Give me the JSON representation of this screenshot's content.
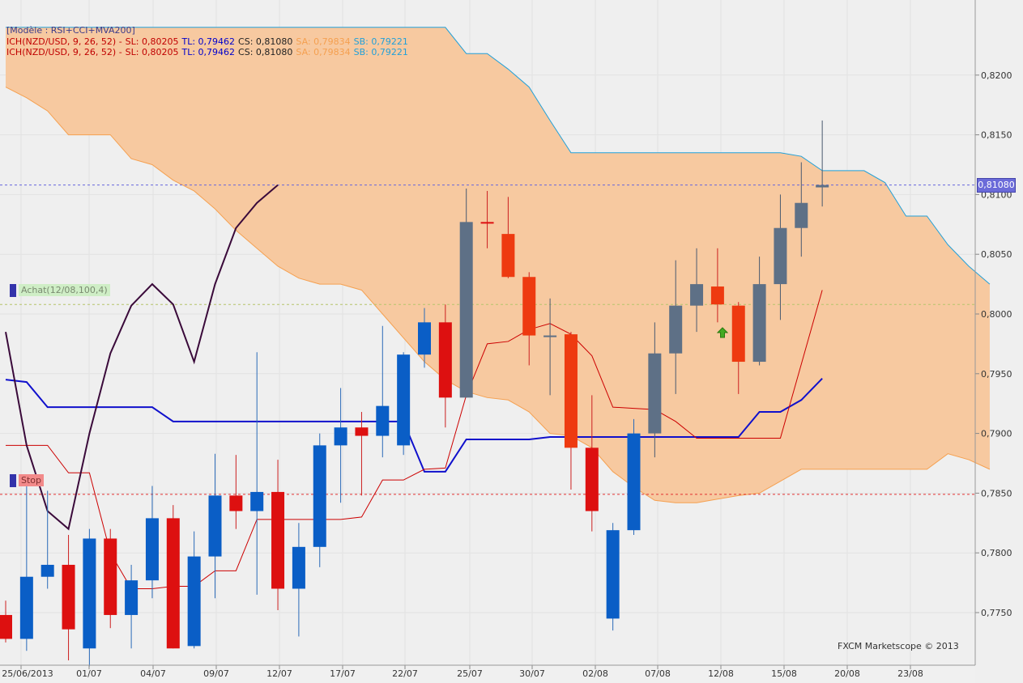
{
  "legend": {
    "model": "[Modèle : RSI+CCI+MVA200]",
    "ich_label": "ICH(NZD/USD, 9, 26, 52) -",
    "sl": "SL: 0,80205",
    "tl": "TL: 0,79462",
    "cs": "CS: 0,81080",
    "sa": "SA: 0,79834",
    "sb": "SB: 0,79221"
  },
  "orders": {
    "buy_label": "Achat(12/08,100,4)",
    "buy_level": 0.8008,
    "stop_label": "Stop",
    "stop_level": 0.7849
  },
  "current_price": {
    "label": "0,81080",
    "value": 0.8108
  },
  "watermark": "FXCM Marketscope © 2013",
  "colors": {
    "bull_blue": "#0a5ec6",
    "bear_red": "#dd1010",
    "bear_orange": "#ee3a10",
    "gray_candle": "#5e7086",
    "cloud_fill": "#f7c9a0",
    "cloud_edge_a": "#f5a050",
    "cloud_edge_b": "#22a0d8",
    "kijun": "#1010cc",
    "tenkan": "#cc0000",
    "chikou": "#3a0a3a"
  },
  "chart_data": {
    "type": "candlestick",
    "instrument": "NZD/USD",
    "ylim": [
      0.772,
      0.824
    ],
    "y_ticks": [
      "0,7750",
      "0,7800",
      "0,7850",
      "0,7900",
      "0,7950",
      "0,8000",
      "0,8050",
      "0,8100",
      "0,8150",
      "0,8200"
    ],
    "y_tick_values": [
      0.775,
      0.78,
      0.785,
      0.79,
      0.795,
      0.8,
      0.805,
      0.81,
      0.815,
      0.82
    ],
    "x_ticks": [
      "25/06/2013",
      "01/07",
      "04/07",
      "09/07",
      "12/07",
      "17/07",
      "22/07",
      "25/07",
      "30/07",
      "02/08",
      "07/08",
      "12/08",
      "15/08",
      "20/08",
      "23/08"
    ],
    "candles": [
      {
        "o": 0.7748,
        "h": 0.776,
        "l": 0.7725,
        "c": 0.7728
      },
      {
        "o": 0.7728,
        "h": 0.786,
        "l": 0.7718,
        "c": 0.778
      },
      {
        "o": 0.778,
        "h": 0.7852,
        "l": 0.777,
        "c": 0.779
      },
      {
        "o": 0.779,
        "h": 0.7815,
        "l": 0.771,
        "c": 0.7736
      },
      {
        "o": 0.772,
        "h": 0.782,
        "l": 0.7705,
        "c": 0.7812
      },
      {
        "o": 0.7812,
        "h": 0.782,
        "l": 0.7737,
        "c": 0.7748
      },
      {
        "o": 0.7748,
        "h": 0.779,
        "l": 0.772,
        "c": 0.7777
      },
      {
        "o": 0.7777,
        "h": 0.7856,
        "l": 0.7762,
        "c": 0.7829
      },
      {
        "o": 0.7829,
        "h": 0.784,
        "l": 0.772,
        "c": 0.772
      },
      {
        "o": 0.7722,
        "h": 0.7818,
        "l": 0.772,
        "c": 0.7797
      },
      {
        "o": 0.7797,
        "h": 0.7883,
        "l": 0.7762,
        "c": 0.7848
      },
      {
        "o": 0.7848,
        "h": 0.7882,
        "l": 0.782,
        "c": 0.7835
      },
      {
        "o": 0.7835,
        "h": 0.7968,
        "l": 0.7765,
        "c": 0.7851
      },
      {
        "o": 0.7851,
        "h": 0.7878,
        "l": 0.7752,
        "c": 0.777
      },
      {
        "o": 0.777,
        "h": 0.7825,
        "l": 0.773,
        "c": 0.7805
      },
      {
        "o": 0.7805,
        "h": 0.79,
        "l": 0.7788,
        "c": 0.789
      },
      {
        "o": 0.789,
        "h": 0.7938,
        "l": 0.7842,
        "c": 0.7905
      },
      {
        "o": 0.7905,
        "h": 0.7918,
        "l": 0.7848,
        "c": 0.7898
      },
      {
        "o": 0.7898,
        "h": 0.799,
        "l": 0.788,
        "c": 0.7923
      },
      {
        "o": 0.789,
        "h": 0.7968,
        "l": 0.7882,
        "c": 0.7966
      },
      {
        "o": 0.7966,
        "h": 0.8005,
        "l": 0.7955,
        "c": 0.7993
      },
      {
        "o": 0.7993,
        "h": 0.8008,
        "l": 0.7905,
        "c": 0.793
      },
      {
        "o": 0.793,
        "h": 0.8105,
        "l": 0.793,
        "c": 0.8077
      },
      {
        "o": 0.8077,
        "h": 0.8103,
        "l": 0.8055,
        "c": 0.8077
      },
      {
        "o": 0.8067,
        "h": 0.8098,
        "l": 0.803,
        "c": 0.8031
      },
      {
        "o": 0.8031,
        "h": 0.8035,
        "l": 0.7957,
        "c": 0.7982
      },
      {
        "o": 0.7982,
        "h": 0.8013,
        "l": 0.7932,
        "c": 0.7982
      },
      {
        "o": 0.7983,
        "h": 0.7985,
        "l": 0.7853,
        "c": 0.7888
      },
      {
        "o": 0.7888,
        "h": 0.7932,
        "l": 0.7818,
        "c": 0.7835
      },
      {
        "o": 0.7745,
        "h": 0.7825,
        "l": 0.7735,
        "c": 0.7819
      },
      {
        "o": 0.7819,
        "h": 0.7912,
        "l": 0.7815,
        "c": 0.79
      },
      {
        "o": 0.79,
        "h": 0.7993,
        "l": 0.788,
        "c": 0.7967
      },
      {
        "o": 0.7967,
        "h": 0.8045,
        "l": 0.7933,
        "c": 0.8007
      },
      {
        "o": 0.8007,
        "h": 0.8055,
        "l": 0.7985,
        "c": 0.8025
      },
      {
        "o": 0.8023,
        "h": 0.8055,
        "l": 0.7993,
        "c": 0.8008
      },
      {
        "o": 0.8007,
        "h": 0.801,
        "l": 0.7933,
        "c": 0.796
      },
      {
        "o": 0.796,
        "h": 0.8048,
        "l": 0.7957,
        "c": 0.8025
      },
      {
        "o": 0.8025,
        "h": 0.81,
        "l": 0.7995,
        "c": 0.8072
      },
      {
        "o": 0.8072,
        "h": 0.8127,
        "l": 0.8048,
        "c": 0.8093
      },
      {
        "o": 0.8108,
        "h": 0.8162,
        "l": 0.809,
        "c": 0.8106
      }
    ],
    "candle_colors": [
      "red",
      "blue",
      "blue",
      "red",
      "blue",
      "red",
      "blue",
      "blue",
      "red",
      "blue",
      "blue",
      "red",
      "blue",
      "red",
      "blue",
      "blue",
      "blue",
      "red",
      "blue",
      "blue",
      "blue",
      "red",
      "gray",
      "red",
      "orange",
      "orange",
      "gray",
      "orange",
      "red",
      "blue",
      "blue",
      "gray",
      "gray",
      "gray",
      "orange",
      "orange",
      "gray",
      "gray",
      "gray",
      "gray"
    ],
    "tenkan": [
      0.789,
      0.789,
      0.789,
      0.7867,
      0.7867,
      0.78,
      0.777,
      0.777,
      0.7772,
      0.7772,
      0.7785,
      0.7785,
      0.7828,
      0.7828,
      0.7828,
      0.7828,
      0.7828,
      0.783,
      0.7861,
      0.7861,
      0.787,
      0.7871,
      0.7932,
      0.7975,
      0.7977,
      0.7987,
      0.7992,
      0.7983,
      0.7965,
      0.7922,
      0.7921,
      0.792,
      0.791,
      0.7896,
      0.7896,
      0.7896,
      0.7896,
      0.7896,
      0.7958,
      0.802
    ],
    "kijun": [
      0.7945,
      0.7943,
      0.7922,
      0.7922,
      0.7922,
      0.7922,
      0.7922,
      0.7922,
      0.791,
      0.791,
      0.791,
      0.791,
      0.791,
      0.791,
      0.791,
      0.791,
      0.791,
      0.791,
      0.791,
      0.791,
      0.7868,
      0.7868,
      0.7895,
      0.7895,
      0.7895,
      0.7895,
      0.7897,
      0.7897,
      0.7897,
      0.7897,
      0.7897,
      0.7897,
      0.7897,
      0.7897,
      0.7897,
      0.7897,
      0.7918,
      0.7918,
      0.7928,
      0.7946
    ],
    "chikou": [
      0.7985,
      0.789,
      0.7835,
      0.782,
      0.79,
      0.7967,
      0.8007,
      0.8025,
      0.8008,
      0.796,
      0.8025,
      0.8072,
      0.8093,
      0.8108
    ],
    "senkou_a": [
      0.819,
      0.8181,
      0.817,
      0.815,
      0.815,
      0.815,
      0.813,
      0.8125,
      0.8112,
      0.8103,
      0.8088,
      0.807,
      0.8055,
      0.804,
      0.803,
      0.8025,
      0.8025,
      0.802,
      0.8,
      0.798,
      0.796,
      0.7945,
      0.7935,
      0.793,
      0.7928,
      0.7918,
      0.79,
      0.7898,
      0.7888,
      0.7868,
      0.7855,
      0.7844,
      0.7842,
      0.7842,
      0.7845,
      0.7848,
      0.785,
      0.786,
      0.787,
      0.787,
      0.787,
      0.787,
      0.787,
      0.787,
      0.787,
      0.7883,
      0.7878,
      0.787
    ],
    "senkou_b": [
      0.824,
      0.824,
      0.824,
      0.824,
      0.824,
      0.824,
      0.824,
      0.824,
      0.824,
      0.824,
      0.824,
      0.824,
      0.824,
      0.824,
      0.824,
      0.824,
      0.824,
      0.824,
      0.824,
      0.824,
      0.824,
      0.824,
      0.8218,
      0.8218,
      0.8205,
      0.819,
      0.8162,
      0.8135,
      0.8135,
      0.8135,
      0.8135,
      0.8135,
      0.8135,
      0.8135,
      0.8135,
      0.8135,
      0.8135,
      0.8135,
      0.8132,
      0.812,
      0.812,
      0.812,
      0.811,
      0.8082,
      0.8082,
      0.8058,
      0.804,
      0.8025
    ]
  }
}
